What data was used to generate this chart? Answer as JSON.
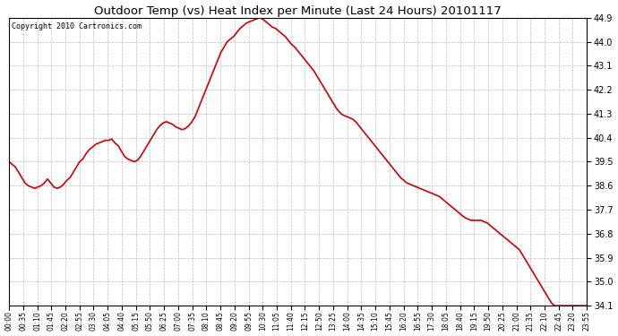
{
  "title": "Outdoor Temp (vs) Heat Index per Minute (Last 24 Hours) 20101117",
  "copyright": "Copyright 2010 Cartronics.com",
  "line_color": "#cc0000",
  "line_width": 1.2,
  "background_color": "#ffffff",
  "grid_color": "#aaaaaa",
  "ylim": [
    34.1,
    44.9
  ],
  "yticks": [
    34.1,
    35.0,
    35.9,
    36.8,
    37.7,
    38.6,
    39.5,
    40.4,
    41.3,
    42.2,
    43.1,
    44.0,
    44.9
  ],
  "xtick_labels": [
    "00:00",
    "00:35",
    "01:10",
    "01:45",
    "02:20",
    "02:55",
    "03:30",
    "04:05",
    "04:40",
    "05:15",
    "05:50",
    "06:25",
    "07:00",
    "07:35",
    "08:10",
    "08:45",
    "09:20",
    "09:55",
    "10:30",
    "11:05",
    "11:40",
    "12:15",
    "12:50",
    "13:25",
    "14:00",
    "14:35",
    "15:10",
    "15:45",
    "16:20",
    "16:55",
    "17:30",
    "18:05",
    "18:40",
    "19:15",
    "19:50",
    "20:25",
    "21:00",
    "21:35",
    "22:10",
    "22:45",
    "23:20",
    "23:55"
  ],
  "y_values": [
    39.5,
    39.4,
    39.3,
    39.1,
    38.9,
    38.7,
    38.6,
    38.55,
    38.5,
    38.55,
    38.6,
    38.7,
    38.85,
    38.7,
    38.55,
    38.5,
    38.55,
    38.65,
    38.8,
    38.9,
    39.1,
    39.3,
    39.5,
    39.6,
    39.8,
    39.95,
    40.05,
    40.15,
    40.2,
    40.25,
    40.3,
    40.3,
    40.35,
    40.2,
    40.1,
    39.9,
    39.7,
    39.6,
    39.55,
    39.5,
    39.55,
    39.7,
    39.9,
    40.1,
    40.3,
    40.5,
    40.7,
    40.85,
    40.95,
    41.0,
    40.95,
    40.9,
    40.8,
    40.75,
    40.7,
    40.75,
    40.85,
    41.0,
    41.2,
    41.5,
    41.8,
    42.1,
    42.4,
    42.7,
    43.0,
    43.3,
    43.6,
    43.8,
    44.0,
    44.1,
    44.2,
    44.35,
    44.5,
    44.6,
    44.7,
    44.75,
    44.8,
    44.85,
    44.9,
    44.85,
    44.75,
    44.65,
    44.55,
    44.5,
    44.4,
    44.3,
    44.2,
    44.05,
    43.9,
    43.8,
    43.65,
    43.5,
    43.35,
    43.2,
    43.05,
    42.9,
    42.7,
    42.5,
    42.3,
    42.1,
    41.9,
    41.7,
    41.5,
    41.35,
    41.25,
    41.2,
    41.15,
    41.1,
    41.0,
    40.85,
    40.7,
    40.55,
    40.4,
    40.25,
    40.1,
    39.95,
    39.8,
    39.65,
    39.5,
    39.35,
    39.2,
    39.05,
    38.9,
    38.8,
    38.7,
    38.65,
    38.6,
    38.55,
    38.5,
    38.45,
    38.4,
    38.35,
    38.3,
    38.25,
    38.2,
    38.1,
    38.0,
    37.9,
    37.8,
    37.7,
    37.6,
    37.5,
    37.4,
    37.35,
    37.3,
    37.3,
    37.3,
    37.3,
    37.25,
    37.2,
    37.1,
    37.0,
    36.9,
    36.8,
    36.7,
    36.6,
    36.5,
    36.4,
    36.3,
    36.2,
    36.0,
    35.8,
    35.6,
    35.4,
    35.2,
    35.0,
    34.8,
    34.6,
    34.4,
    34.2,
    34.1,
    34.1,
    34.1,
    34.1,
    34.1,
    34.1,
    34.1,
    34.1,
    34.1,
    34.1,
    34.1
  ]
}
